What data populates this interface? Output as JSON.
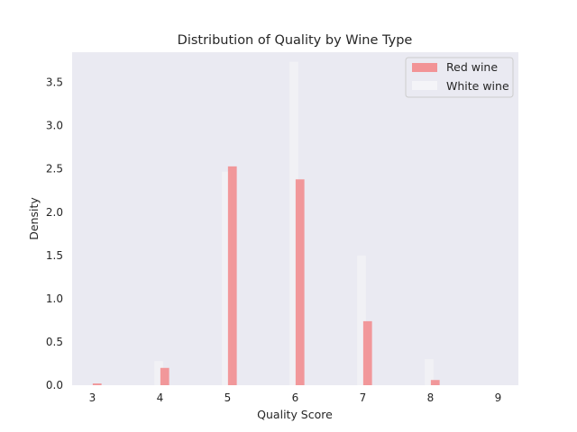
{
  "chart_data": {
    "type": "bar",
    "title": "Distribution of Quality by Wine Type",
    "xlabel": "Quality Score",
    "ylabel": "Density",
    "xlim": [
      2.7,
      9.3
    ],
    "ylim": [
      0,
      3.85
    ],
    "xticks": [
      "3",
      "4",
      "5",
      "6",
      "7",
      "8",
      "9"
    ],
    "yticks": [
      "0.0",
      "0.5",
      "1.0",
      "1.5",
      "2.0",
      "2.5",
      "3.0",
      "3.5"
    ],
    "grid": false,
    "legend_position": "top-right",
    "series": [
      {
        "name": "Red wine",
        "color": "#f28e90",
        "opacity": 0.9,
        "x": [
          3,
          4,
          5,
          6,
          7,
          8
        ],
        "values": [
          0.02,
          0.2,
          2.53,
          2.38,
          0.74,
          0.06
        ]
      },
      {
        "name": "White wine",
        "color": "#f5f5f8",
        "opacity": 0.55,
        "x": [
          4,
          5,
          6,
          7,
          8
        ],
        "values": [
          0.28,
          2.47,
          3.74,
          1.5,
          0.3
        ]
      }
    ]
  },
  "colors": {
    "plot_background": "#eaeaf2",
    "text": "#262626"
  }
}
